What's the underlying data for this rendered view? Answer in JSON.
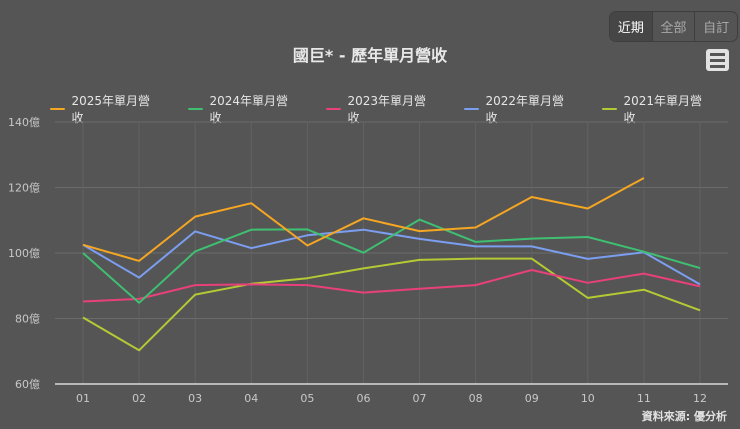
{
  "range_selector": {
    "buttons": [
      {
        "label": "近期",
        "active": true
      },
      {
        "label": "全部",
        "active": false
      },
      {
        "label": "自訂",
        "active": false
      }
    ]
  },
  "menu": {
    "icon": "hamburger-menu-icon"
  },
  "source_label": "資料來源: 優分析",
  "chart_data": {
    "type": "line",
    "title": "國巨* - 歷年單月營收",
    "xlabel": "",
    "ylabel": "",
    "categories": [
      "01",
      "02",
      "03",
      "04",
      "05",
      "06",
      "07",
      "08",
      "09",
      "10",
      "11",
      "12"
    ],
    "y_tick_labels": [
      "60億",
      "80億",
      "100億",
      "120億",
      "140億"
    ],
    "y_ticks": [
      60,
      80,
      100,
      120,
      140
    ],
    "ylim": [
      60,
      140
    ],
    "unit": "億",
    "grid": true,
    "legend_position": "top",
    "series": [
      {
        "name": "2025年單月營收",
        "color": "#f5a623",
        "values": [
          102.5,
          97.6,
          111.1,
          115.2,
          102.3,
          110.6,
          106.7,
          107.8,
          117.1,
          113.6,
          122.9,
          null
        ]
      },
      {
        "name": "2024年單月營收",
        "color": "#3fbf72",
        "values": [
          100.0,
          84.8,
          100.5,
          107.1,
          107.2,
          100.1,
          110.2,
          103.4,
          104.4,
          104.9,
          100.4,
          95.4
        ]
      },
      {
        "name": "2023年單月營收",
        "color": "#e8407a",
        "values": [
          85.2,
          86.0,
          90.2,
          90.4,
          90.2,
          87.9,
          89.1,
          90.2,
          94.8,
          90.9,
          93.7,
          89.8
        ]
      },
      {
        "name": "2022年單月營收",
        "color": "#7b9ef0",
        "values": [
          102.5,
          92.5,
          106.6,
          101.5,
          105.4,
          107.1,
          104.3,
          102.0,
          102.0,
          98.2,
          100.2,
          90.4
        ]
      },
      {
        "name": "2021年單月營收",
        "color": "#b5c934",
        "values": [
          80.3,
          70.3,
          87.3,
          90.6,
          92.3,
          95.3,
          97.9,
          98.3,
          98.3,
          86.3,
          88.8,
          82.5
        ]
      }
    ]
  }
}
